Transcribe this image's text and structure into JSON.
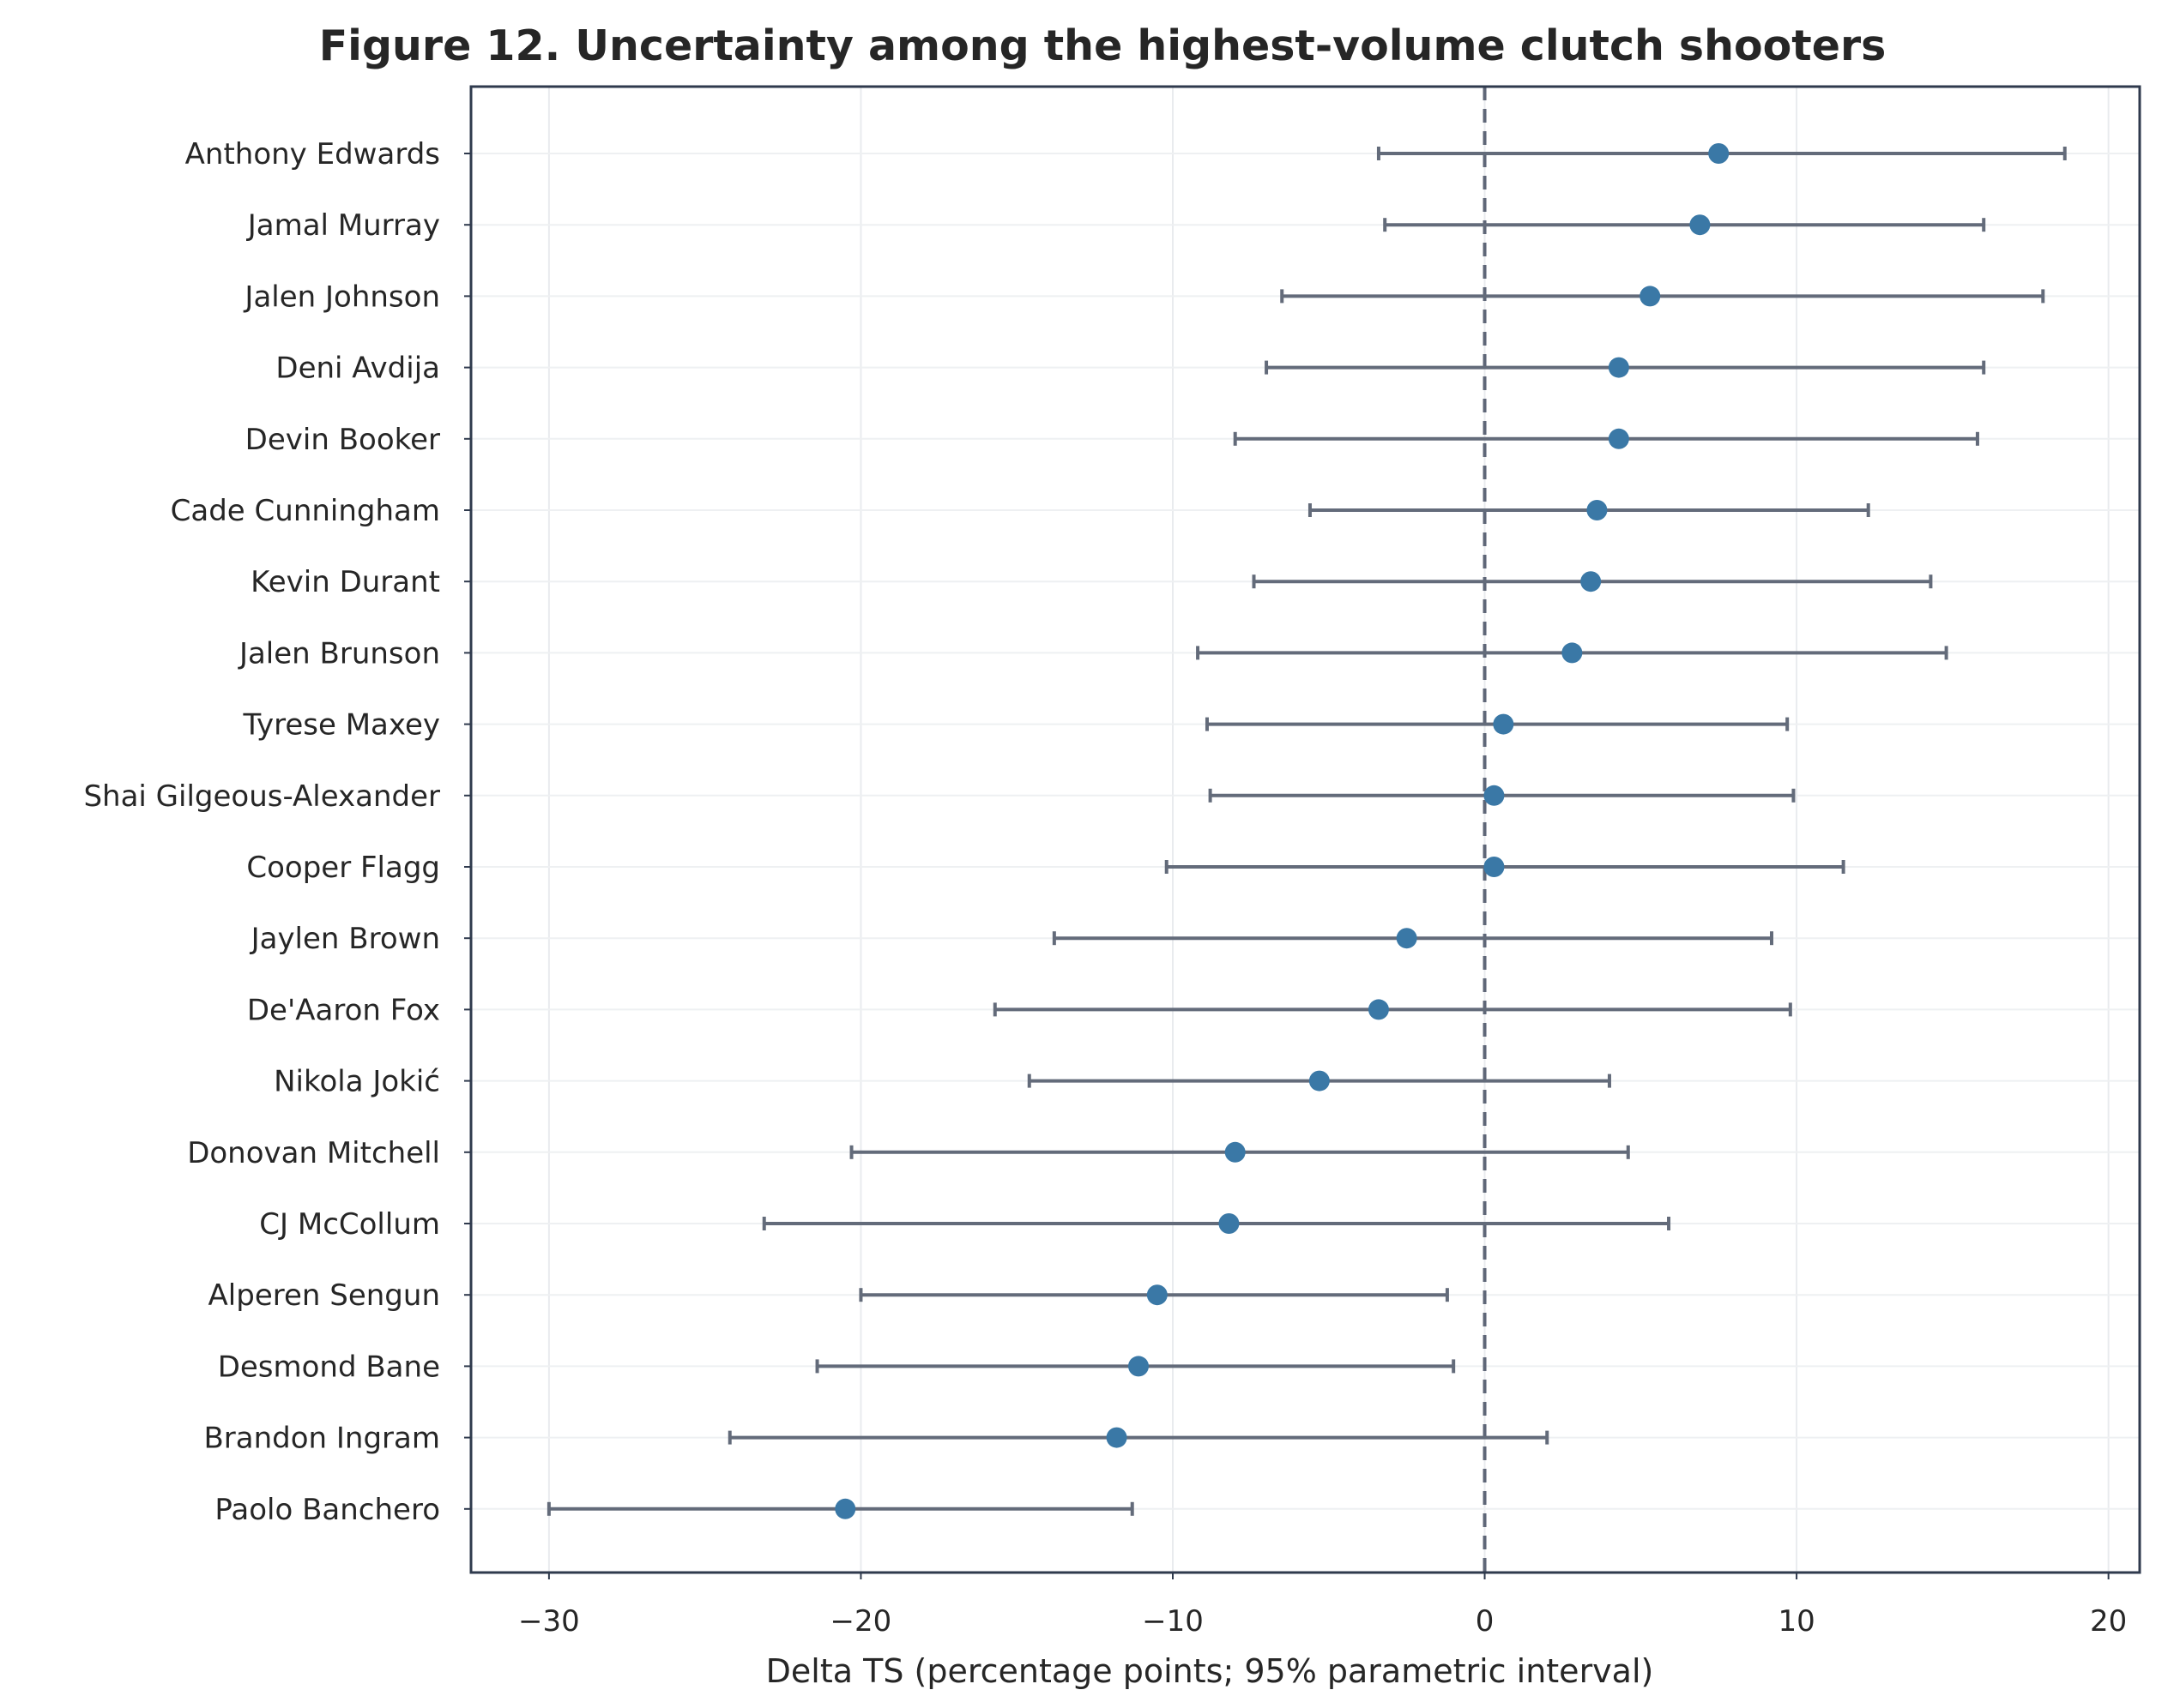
{
  "chart_data": {
    "type": "scatter",
    "title": "Figure 12. Uncertainty among the highest-volume clutch shooters",
    "xlabel": "Delta TS (percentage points; 95% parametric interval)",
    "ylabel": "",
    "xlim": [
      -32.5,
      21
    ],
    "xticks": [
      -30,
      -20,
      -10,
      0,
      10,
      20
    ],
    "xtick_labels": [
      "−30",
      "−20",
      "−10",
      "0",
      "10",
      "20"
    ],
    "reference_line_x": 0,
    "grid": true,
    "point_color": "#3a78a6",
    "interval_color": "#636b7a",
    "players": [
      {
        "name": "Anthony Edwards",
        "estimate": 7.5,
        "lower": -3.4,
        "upper": 18.6
      },
      {
        "name": "Jamal Murray",
        "estimate": 6.9,
        "lower": -3.2,
        "upper": 16.0
      },
      {
        "name": "Jalen Johnson",
        "estimate": 5.3,
        "lower": -6.5,
        "upper": 17.9
      },
      {
        "name": "Deni Avdija",
        "estimate": 4.3,
        "lower": -7.0,
        "upper": 16.0
      },
      {
        "name": "Devin Booker",
        "estimate": 4.3,
        "lower": -8.0,
        "upper": 15.8
      },
      {
        "name": "Cade Cunningham",
        "estimate": 3.6,
        "lower": -5.6,
        "upper": 12.3
      },
      {
        "name": "Kevin Durant",
        "estimate": 3.4,
        "lower": -7.4,
        "upper": 14.3
      },
      {
        "name": "Jalen Brunson",
        "estimate": 2.8,
        "lower": -9.2,
        "upper": 14.8
      },
      {
        "name": "Tyrese Maxey",
        "estimate": 0.6,
        "lower": -8.9,
        "upper": 9.7
      },
      {
        "name": "Shai Gilgeous-Alexander",
        "estimate": 0.3,
        "lower": -8.8,
        "upper": 9.9
      },
      {
        "name": "Cooper Flagg",
        "estimate": 0.3,
        "lower": -10.2,
        "upper": 11.5
      },
      {
        "name": "Jaylen Brown",
        "estimate": -2.5,
        "lower": -13.8,
        "upper": 9.2
      },
      {
        "name": "De'Aaron Fox",
        "estimate": -3.4,
        "lower": -15.7,
        "upper": 9.8
      },
      {
        "name": "Nikola Jokić",
        "estimate": -5.3,
        "lower": -14.6,
        "upper": 4.0
      },
      {
        "name": "Donovan Mitchell",
        "estimate": -8.0,
        "lower": -20.3,
        "upper": 4.6
      },
      {
        "name": "CJ McCollum",
        "estimate": -8.2,
        "lower": -23.1,
        "upper": 5.9
      },
      {
        "name": "Alperen Sengun",
        "estimate": -10.5,
        "lower": -20.0,
        "upper": -1.2
      },
      {
        "name": "Desmond Bane",
        "estimate": -11.1,
        "lower": -21.4,
        "upper": -1.0
      },
      {
        "name": "Brandon Ingram",
        "estimate": -11.8,
        "lower": -24.2,
        "upper": 2.0
      },
      {
        "name": "Paolo Banchero",
        "estimate": -20.5,
        "lower": -30.0,
        "upper": -11.3
      }
    ]
  }
}
